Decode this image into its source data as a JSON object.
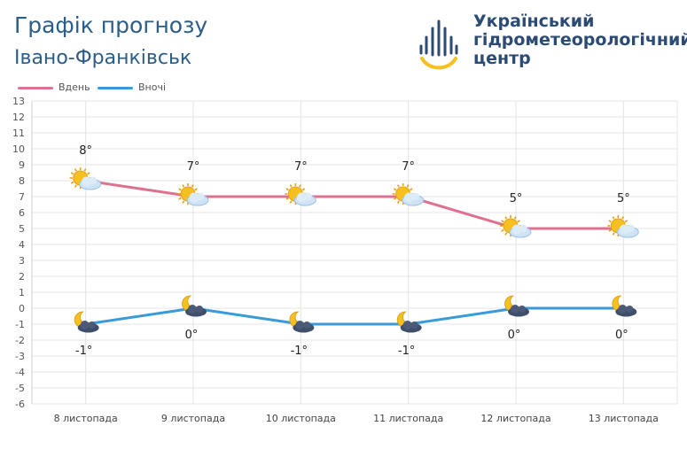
{
  "header": {
    "title": "Графік прогнозу",
    "subtitle": "Івано-Франківськ",
    "org_lines": [
      "Український",
      "гідрометеорологічний",
      "центр"
    ]
  },
  "legend": {
    "day_label": "Вдень",
    "night_label": "Вночі"
  },
  "colors": {
    "day": "#e07090",
    "night": "#3a9ad9",
    "title": "#2b5d86",
    "org": "#2b4a74",
    "sun": "#f5c020",
    "grid": "#e4e4e4"
  },
  "chart_data": {
    "type": "line",
    "categories": [
      "8 листопада",
      "9 листопада",
      "10 листопада",
      "11 листопада",
      "12 листопада",
      "13 листопада"
    ],
    "series": [
      {
        "name": "Вдень",
        "values": [
          8,
          7,
          7,
          7,
          5,
          5
        ],
        "labels": [
          "8°",
          "7°",
          "7°",
          "7°",
          "5°",
          "5°"
        ],
        "icon": "sun-cloud-icon"
      },
      {
        "name": "Вночі",
        "values": [
          -1,
          0,
          -1,
          -1,
          0,
          0
        ],
        "labels": [
          "-1°",
          "0°",
          "-1°",
          "-1°",
          "0°",
          "0°"
        ],
        "icon": "moon-cloud-icon"
      }
    ],
    "ylim": [
      -6,
      13
    ],
    "yticks": [
      13,
      12,
      11,
      10,
      9,
      8,
      7,
      6,
      5,
      4,
      3,
      2,
      1,
      0,
      -1,
      -2,
      -3,
      -4,
      -5,
      -6
    ],
    "grid": true,
    "legend_position": "top-left"
  }
}
